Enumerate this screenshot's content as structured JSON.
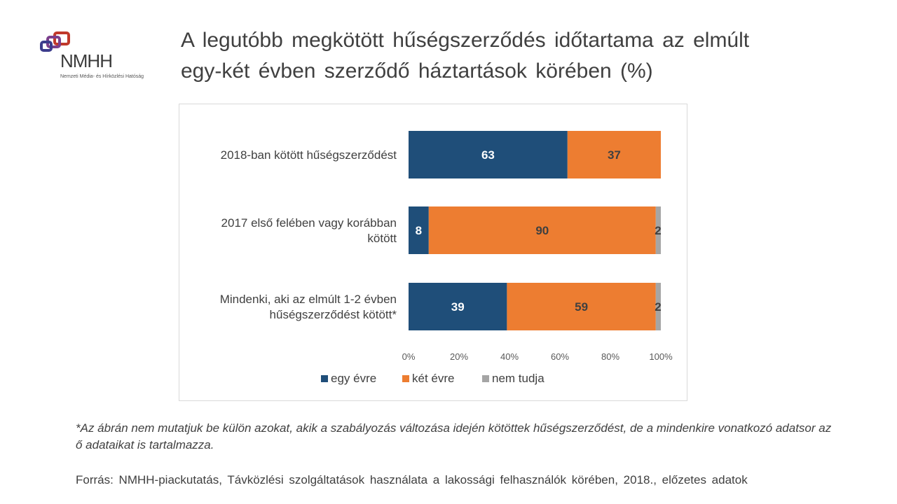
{
  "logo": {
    "name": "NMHH",
    "subtitle": "Nemzeti Média- és Hírközlési Hatóság"
  },
  "title": "A legutóbb megkötött hűségszerződés időtartama az elmúlt egy-két évben szerződő háztartások körében (%)",
  "chart_data": {
    "type": "bar",
    "orientation": "horizontal",
    "stacked": true,
    "percent_stacked": true,
    "categories": [
      [
        "2018-ban kötött hűségszerződést"
      ],
      [
        "2017 első felében vagy korábban",
        "kötött"
      ],
      [
        "Mindenki, aki az elmúlt 1-2 évben",
        "hűségszerződést kötött*"
      ]
    ],
    "series": [
      {
        "name": "egy évre",
        "color": "#1f4e79",
        "values": [
          63,
          8,
          39
        ]
      },
      {
        "name": "két évre",
        "color": "#ed7d31",
        "values": [
          37,
          90,
          59
        ]
      },
      {
        "name": "nem tudja",
        "color": "#a5a5a5",
        "values": [
          0,
          2,
          2
        ]
      }
    ],
    "xlim": [
      0,
      100
    ],
    "xticks": [
      "0%",
      "20%",
      "40%",
      "60%",
      "80%",
      "100%"
    ],
    "legend_position": "bottom",
    "grid": false
  },
  "footnote": "*Az ábrán nem mutatjuk be külön azokat, akik a szabályozás változása idején kötöttek hűségszerződést, de a mindenkire vonatkozó adatsor az ő adataikat is tartalmazza.",
  "source": "Forrás: NMHH-piackutatás, Távközlési szolgáltatások használata a lakossági felhasználók körében, 2018., előzetes adatok"
}
